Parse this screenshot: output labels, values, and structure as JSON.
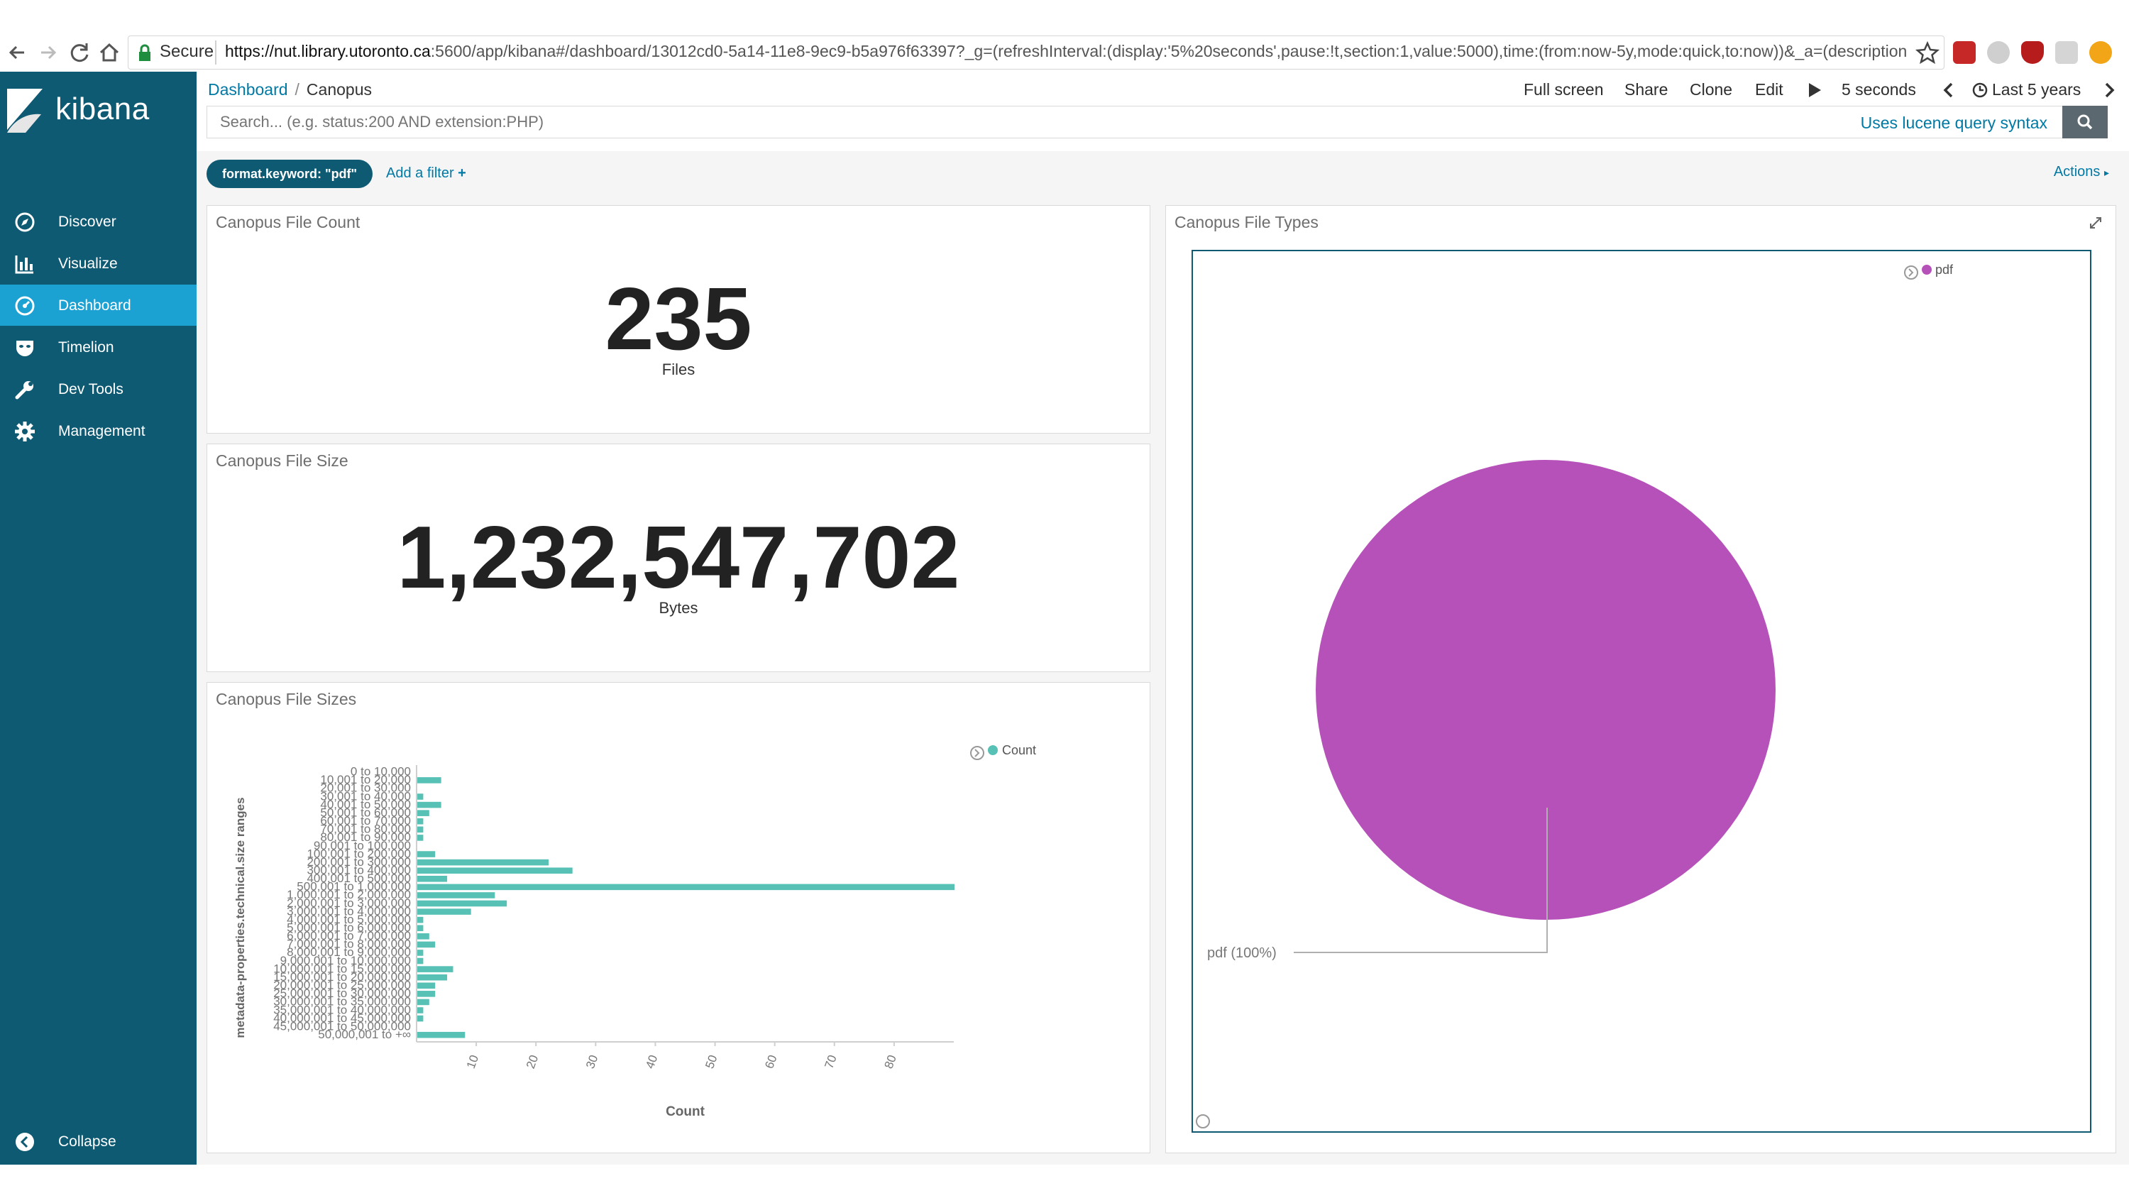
{
  "browser": {
    "secure_label": "Secure",
    "url_host": "https://nut.library.utoronto.ca",
    "url_rest": ":5600/app/kibana#/dashboard/13012cd0-5a14-11e8-9ec9-b5a976f63397?_g=(refreshInterval:(display:'5%20seconds',pause:!t,section:1,value:5000),time:(from:now-5y,mode:quick,to:now))&_a=(description:'',filters:!(('$..."
  },
  "sidebar": {
    "brand": "kibana",
    "items": [
      {
        "label": "Discover",
        "icon": "compass-icon"
      },
      {
        "label": "Visualize",
        "icon": "bar-chart-icon"
      },
      {
        "label": "Dashboard",
        "icon": "dashboard-icon",
        "active": true
      },
      {
        "label": "Timelion",
        "icon": "mask-icon"
      },
      {
        "label": "Dev Tools",
        "icon": "wrench-icon"
      },
      {
        "label": "Management",
        "icon": "gear-icon"
      }
    ],
    "collapse_label": "Collapse"
  },
  "topbar": {
    "breadcrumb_root": "Dashboard",
    "breadcrumb_current": "Canopus",
    "full_screen": "Full screen",
    "share": "Share",
    "clone": "Clone",
    "edit": "Edit",
    "refresh_interval": "5 seconds",
    "time_range": "Last 5 years"
  },
  "search": {
    "placeholder": "Search... (e.g. status:200 AND extension:PHP)",
    "syntax_link": "Uses lucene query syntax"
  },
  "filters": {
    "active_filter": "format.keyword: \"pdf\"",
    "add_filter": "Add a filter",
    "actions": "Actions"
  },
  "panels": {
    "file_count": {
      "title": "Canopus File Count",
      "value": "235",
      "label": "Files"
    },
    "file_size": {
      "title": "Canopus File Size",
      "value": "1,232,547,702",
      "label": "Bytes"
    },
    "file_sizes": {
      "title": "Canopus File Sizes"
    },
    "file_types": {
      "title": "Canopus File Types"
    }
  },
  "chart_data": [
    {
      "type": "bar",
      "orientation": "horizontal",
      "ylabel": "metadata-properties.technical.size ranges",
      "xlabel": "Count",
      "categories": [
        "0 to 10,000",
        "10,001 to 20,000",
        "20,001 to 30,000",
        "30,001 to 40,000",
        "40,001 to 50,000",
        "50,001 to 60,000",
        "60,001 to 70,000",
        "70,001 to 80,000",
        "80,001 to 90,000",
        "90,001 to 100,000",
        "100,001 to 200,000",
        "200,001 to 300,000",
        "300,001 to 400,000",
        "400,001 to 500,000",
        "500,001 to 1,000,000",
        "1,000,001 to 2,000,000",
        "2,000,001 to 3,000,000",
        "3,000,001 to 4,000,000",
        "4,000,001 to 5,000,000",
        "5,000,001 to 6,000,000",
        "6,000,001 to 7,000,000",
        "7,000,001 to 8,000,000",
        "8,000,001 to 9,000,000",
        "9,000,001 to 10,000,000",
        "10,000,001 to 15,000,000",
        "15,000,001 to 20,000,000",
        "20,000,001 to 25,000,000",
        "25,000,001 to 30,000,000",
        "30,000,001 to 35,000,000",
        "35,000,001 to 40,000,000",
        "40,000,001 to 45,000,000",
        "45,000,001 to 50,000,000",
        "50,000,001 to +∞"
      ],
      "series": [
        {
          "name": "Count",
          "values": [
            0,
            4,
            0,
            1,
            4,
            2,
            1,
            1,
            1,
            0,
            3,
            22,
            26,
            5,
            90,
            13,
            15,
            9,
            1,
            1,
            2,
            3,
            1,
            1,
            6,
            5,
            3,
            3,
            2,
            1,
            1,
            0,
            8
          ]
        }
      ],
      "xticks": [
        10,
        20,
        30,
        40,
        50,
        60,
        70,
        80
      ],
      "xlim": [
        0,
        90
      ],
      "legend": "top-right",
      "color": "#57c1b5"
    },
    {
      "type": "pie",
      "labels": [
        "pdf"
      ],
      "values": [
        100
      ],
      "slice_label": "pdf (100%)",
      "legend": "top-right",
      "color": "#b651b9"
    }
  ]
}
